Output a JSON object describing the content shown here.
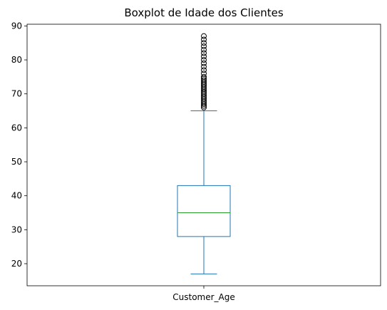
{
  "chart_data": {
    "type": "box",
    "title": "Boxplot de Idade dos Clientes",
    "xlabel": "",
    "ylabel": "",
    "categories": [
      "Customer_Age"
    ],
    "ylim": [
      13.5,
      90.5
    ],
    "yticks": [
      20,
      30,
      40,
      50,
      60,
      70,
      80,
      90
    ],
    "grid": false,
    "colors": {
      "box": "#1f77b4",
      "median": "#2ca02c",
      "outlier": "#000000"
    },
    "boxes": [
      {
        "name": "Customer_Age",
        "whisker_low": 17,
        "q1": 28,
        "median": 35,
        "q3": 43,
        "whisker_high": 65,
        "outliers": [
          66,
          66.5,
          67,
          67.5,
          68,
          68.5,
          69,
          69.5,
          70,
          70.5,
          71,
          71.5,
          72,
          72.5,
          73,
          73.5,
          74,
          74.5,
          75,
          76,
          77,
          78,
          79,
          80,
          81,
          82,
          83,
          84,
          85,
          86,
          87
        ]
      }
    ]
  }
}
